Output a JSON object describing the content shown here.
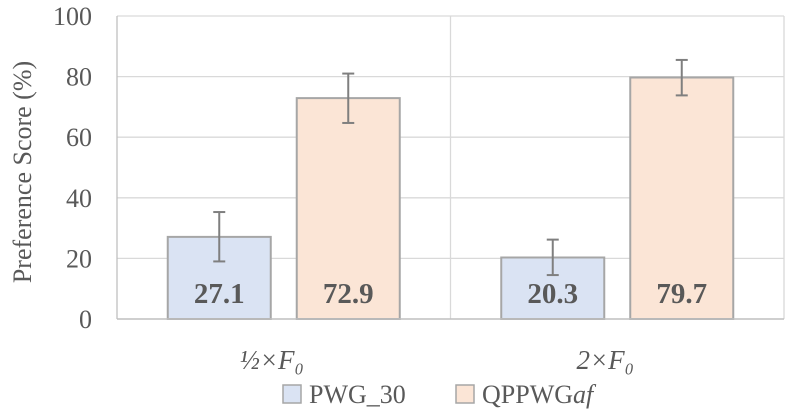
{
  "chart_data": {
    "type": "bar",
    "ylabel": "Preference Score (%)",
    "ylim": [
      0,
      100
    ],
    "y_ticks": [
      "0",
      "20",
      "40",
      "60",
      "80",
      "100"
    ],
    "grid": "horizontal and vertical major gridlines",
    "categories": [
      "½×F₀",
      "2×F₀"
    ],
    "series": [
      {
        "name": "PWG_30",
        "values": [
          27.1,
          20.3
        ],
        "value_labels": [
          "27.1",
          "20.3"
        ],
        "error_low": [
          19.0,
          14.5
        ],
        "error_high": [
          35.3,
          26.2
        ]
      },
      {
        "name": "QPPWGaf",
        "values": [
          72.9,
          79.7
        ],
        "value_labels": [
          "72.9",
          "79.7"
        ],
        "error_low": [
          64.7,
          73.8
        ],
        "error_high": [
          81.0,
          85.5
        ]
      }
    ],
    "legend": {
      "placement": "bottom",
      "entries": [
        {
          "name_main": "PWG_30",
          "name_italic": ""
        },
        {
          "name_main": "QPPWG",
          "name_italic": "af"
        }
      ]
    },
    "colors": {
      "series": [
        "#dae3f3",
        "#fbe5d6"
      ],
      "bar_border": "#a6a6a6",
      "error_bar": "#7f7f7f",
      "grid": "#d9d9d9",
      "axis": "#bfbfbf",
      "text": "#595959"
    }
  }
}
